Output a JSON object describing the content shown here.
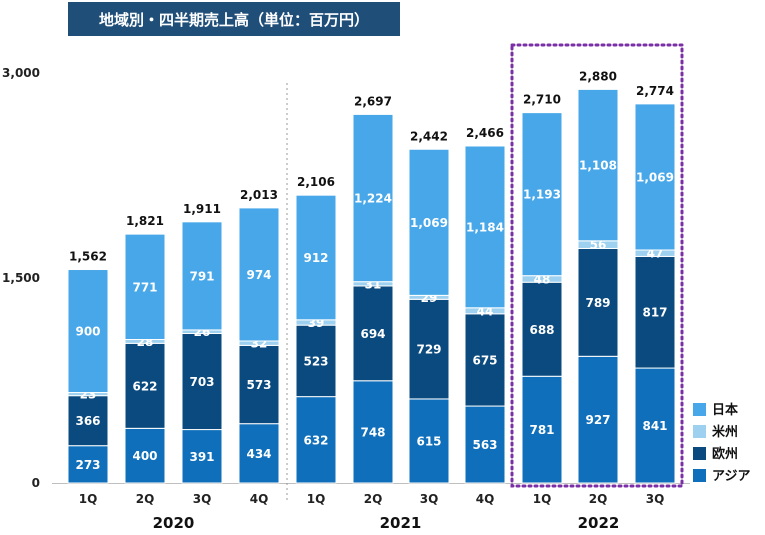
{
  "chart_data": {
    "type": "bar",
    "stacked": true,
    "title": "地域別・四半期売上高（単位：百万円）",
    "xlabel": "",
    "ylabel": "",
    "ylim": [
      0,
      3000
    ],
    "yticks": [
      "0",
      "1,500",
      "3,000"
    ],
    "grid": false,
    "legend_position": "right-bottom",
    "categories": [
      "1Q",
      "2Q",
      "3Q",
      "4Q",
      "1Q",
      "2Q",
      "3Q",
      "4Q",
      "1Q",
      "2Q",
      "3Q"
    ],
    "year_groups": [
      {
        "label": "2020",
        "start": 0,
        "end": 3
      },
      {
        "label": "2021",
        "start": 4,
        "end": 7
      },
      {
        "label": "2022",
        "start": 8,
        "end": 10
      }
    ],
    "highlight_group": 2,
    "totals": [
      "1,562",
      "1,821",
      "1,911",
      "2,013",
      "2,106",
      "2,697",
      "2,442",
      "2,466",
      "2,710",
      "2,880",
      "2,774"
    ],
    "series": [
      {
        "name": "アジア",
        "color": "#0f6fba",
        "values": [
          273,
          400,
          391,
          434,
          632,
          748,
          615,
          563,
          781,
          927,
          841
        ]
      },
      {
        "name": "欧州",
        "color": "#0b4a7e",
        "values": [
          366,
          622,
          703,
          573,
          523,
          694,
          729,
          675,
          688,
          789,
          817
        ]
      },
      {
        "name": "米州",
        "color": "#9ed1f0",
        "values": [
          23,
          28,
          26,
          32,
          39,
          31,
          29,
          44,
          48,
          56,
          47
        ]
      },
      {
        "name": "日本",
        "color": "#47a7e8",
        "values": [
          900,
          771,
          791,
          974,
          912,
          1224,
          1069,
          1184,
          1193,
          1108,
          1069
        ]
      }
    ],
    "legend_order": [
      "日本",
      "米州",
      "欧州",
      "アジア"
    ]
  }
}
